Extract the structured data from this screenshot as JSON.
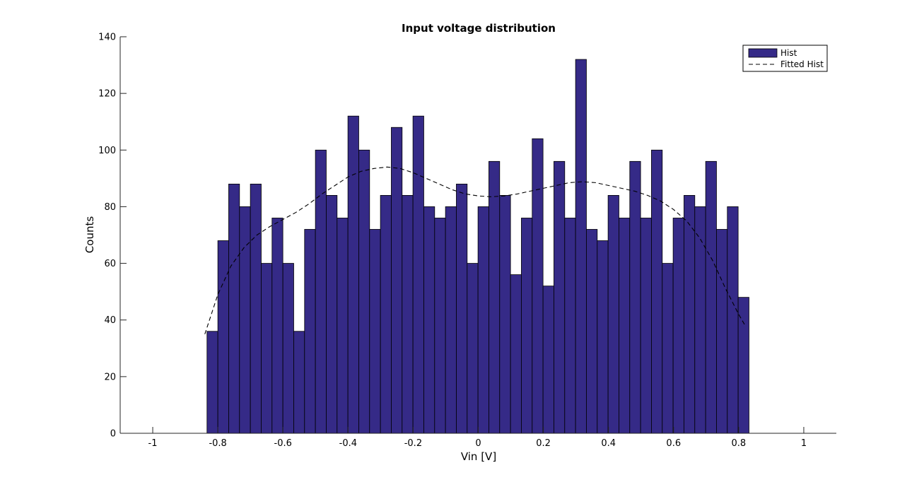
{
  "chart_data": {
    "type": "bar",
    "title": "Input voltage distribution",
    "xlabel": "Vin [V]",
    "ylabel": "Counts",
    "xlim": [
      -1.1,
      1.1
    ],
    "ylim": [
      0,
      140
    ],
    "xticks": [
      -1,
      -0.8,
      -0.6,
      -0.4,
      -0.2,
      0,
      0.2,
      0.4,
      0.6,
      0.8,
      1
    ],
    "xtick_labels": [
      "-1",
      "-0.8",
      "-0.6",
      "-0.4",
      "-0.2",
      "0",
      "0.2",
      "0.4",
      "0.6",
      "0.8",
      "1"
    ],
    "yticks": [
      0,
      20,
      40,
      60,
      80,
      100,
      120,
      140
    ],
    "ytick_labels": [
      "0",
      "20",
      "40",
      "60",
      "80",
      "100",
      "120",
      "140"
    ],
    "bin_start": -0.8333,
    "bin_width": 0.0333,
    "series": [
      {
        "name": "Hist",
        "type": "bar",
        "color": "#352a87",
        "values": [
          36,
          68,
          88,
          80,
          88,
          60,
          76,
          60,
          36,
          72,
          100,
          84,
          76,
          112,
          100,
          72,
          84,
          108,
          84,
          112,
          80,
          76,
          80,
          88,
          60,
          80,
          96,
          84,
          56,
          76,
          104,
          52,
          96,
          76,
          132,
          72,
          68,
          84,
          76,
          96,
          76,
          100,
          60,
          76,
          84,
          80,
          96,
          72,
          80,
          48
        ]
      },
      {
        "name": "Fitted Hist",
        "type": "line",
        "style": "dashed",
        "color": "#000000",
        "x": [
          -0.84,
          -0.8,
          -0.76,
          -0.72,
          -0.68,
          -0.64,
          -0.6,
          -0.56,
          -0.52,
          -0.48,
          -0.44,
          -0.4,
          -0.36,
          -0.32,
          -0.28,
          -0.24,
          -0.2,
          -0.16,
          -0.12,
          -0.08,
          -0.04,
          0,
          0.04,
          0.08,
          0.12,
          0.16,
          0.2,
          0.24,
          0.28,
          0.32,
          0.36,
          0.4,
          0.44,
          0.48,
          0.52,
          0.56,
          0.6,
          0.64,
          0.68,
          0.72,
          0.76,
          0.8,
          0.82
        ],
        "y": [
          35,
          49,
          59,
          65.5,
          70,
          73,
          75.5,
          78,
          81,
          84.5,
          87.5,
          90.5,
          92.5,
          93.5,
          94,
          93.5,
          92,
          90,
          88,
          86,
          84.5,
          83.8,
          83.5,
          83.8,
          84.5,
          85.5,
          86.5,
          87.5,
          88.5,
          88.8,
          88.5,
          87.5,
          86.5,
          85.5,
          84,
          82,
          79,
          75,
          69,
          61,
          51,
          42,
          38
        ]
      }
    ],
    "legend": {
      "position": "top-right",
      "entries": [
        "Hist",
        "Fitted Hist"
      ]
    }
  }
}
